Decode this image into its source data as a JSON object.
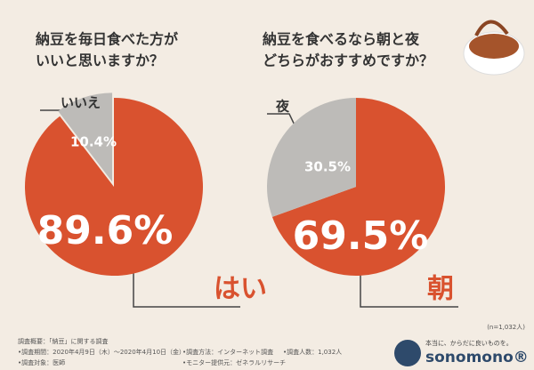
{
  "chart_data": [
    {
      "type": "pie",
      "title": [
        "納豆を毎日食べた方が",
        "いいと思いますか？"
      ],
      "categories": [
        "はい",
        "いいえ"
      ],
      "values": [
        89.6,
        10.4
      ],
      "value_labels": [
        "89.6%",
        "10.4%"
      ],
      "colors": [
        "#d9522f",
        "#bdbbb8"
      ]
    },
    {
      "type": "pie",
      "title": [
        "納豆を食べるなら朝と夜",
        "どちらがおすすめですか？"
      ],
      "categories": [
        "朝",
        "夜"
      ],
      "values": [
        69.5,
        30.5
      ],
      "value_labels": [
        "69.5%",
        "30.5%"
      ],
      "colors": [
        "#d9522f",
        "#bdbbb8"
      ]
    }
  ],
  "sample_note": "(n=1,032人)",
  "survey": {
    "heading": "調査概要：「納豆」に関する調査",
    "items": [
      "•調査期間：2020年4月9日（木）～2020年4月10日（金）",
      "•調査対象：医師",
      "•調査方法：インターネット調査",
      "•モニター提供元：ゼネラルリサーチ",
      "•調査人数：1,032人"
    ]
  },
  "logo": {
    "tagline": "本当に、からだに良いものを。",
    "name": "sonomono®"
  }
}
